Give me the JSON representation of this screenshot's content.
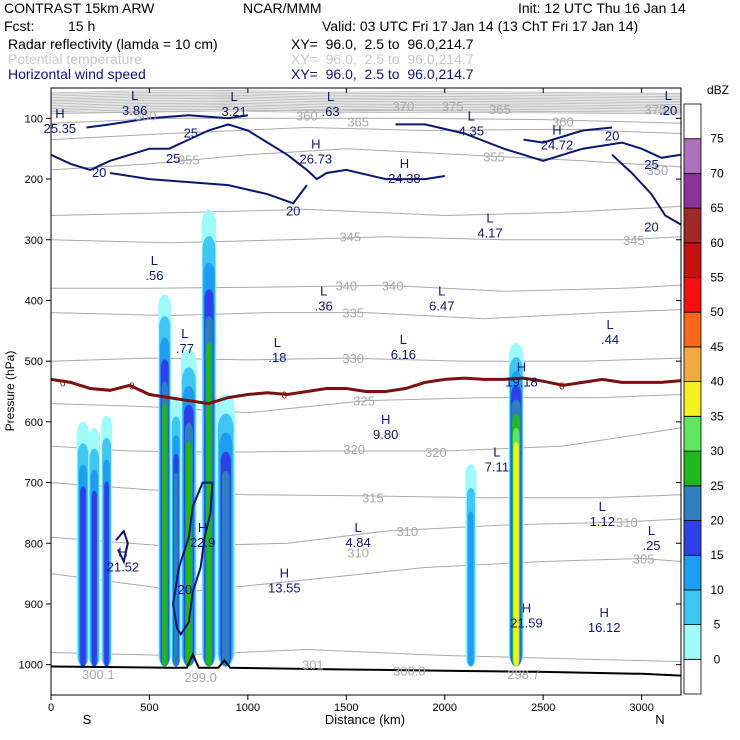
{
  "header": {
    "model": "CONTRAST 15km ARW",
    "org": "NCAR/MMM",
    "init": "Init: 12 UTC Thu 16 Jan 14",
    "fcst_label": "Fcst:",
    "fcst_value": "15 h",
    "valid": "Valid: 03 UTC Fri 17 Jan 14 (13 ChT Fri 17 Jan 14)",
    "field1_name": "Radar reflectivity (lamda = 10 cm)",
    "field1_xy": "XY=  96.0,  2.5 to  96.0,214.7",
    "field2_name": "Potential temperature",
    "field2_xy": "XY=  96.0,  2.5 to  96.0,214.7",
    "field3_name": "Horizontal wind speed",
    "field3_xy": "XY=  96.0,  2.5 to  96.0,214.7"
  },
  "colors": {
    "reflectivity": "#b0b0b0",
    "theta": "#a9a9a9",
    "wind": "#0b1670",
    "freezing": "#7a1010",
    "terrain": "#000000"
  },
  "chart_data": {
    "type": "cross-section",
    "xlabel": "Distance (km)",
    "ylabel": "Pressure (hPa)",
    "xlim": [
      0,
      3200
    ],
    "ylim": [
      1050,
      50
    ],
    "x_ticks": [
      0,
      500,
      1000,
      1500,
      2000,
      2500,
      3000
    ],
    "y_ticks": [
      100,
      200,
      300,
      400,
      500,
      600,
      700,
      800,
      900,
      1000
    ],
    "x_end_labels": {
      "left": "S",
      "right": "N"
    },
    "colorbar": {
      "unit": "dBZ",
      "levels": [
        0,
        5,
        10,
        15,
        20,
        25,
        30,
        35,
        40,
        45,
        50,
        55,
        60,
        65,
        70,
        75
      ],
      "colors": [
        "#ffffff",
        "#9ffafa",
        "#3fc6f4",
        "#1e9ef0",
        "#3040e8",
        "#2e7fc0",
        "#20b820",
        "#5ee65e",
        "#f4f020",
        "#f4a840",
        "#f86818",
        "#f81010",
        "#c81010",
        "#a02828",
        "#8c329a",
        "#b070c0",
        "#ffffff"
      ]
    },
    "reflectivity_cells": [
      {
        "x0": 130,
        "x1": 195,
        "p_top": 600,
        "dbz_max": 20
      },
      {
        "x0": 190,
        "x1": 250,
        "p_top": 610,
        "dbz_max": 20
      },
      {
        "x0": 255,
        "x1": 310,
        "p_top": 590,
        "dbz_max": 20
      },
      {
        "x0": 545,
        "x1": 610,
        "p_top": 390,
        "dbz_max": 30
      },
      {
        "x0": 610,
        "x1": 660,
        "p_top": 560,
        "dbz_max": 25
      },
      {
        "x0": 660,
        "x1": 740,
        "p_top": 480,
        "dbz_max": 30
      },
      {
        "x0": 765,
        "x1": 840,
        "p_top": 250,
        "dbz_max": 30
      },
      {
        "x0": 840,
        "x1": 935,
        "p_top": 555,
        "dbz_max": 25
      },
      {
        "x0": 2105,
        "x1": 2160,
        "p_top": 670,
        "dbz_max": 15
      },
      {
        "x0": 2325,
        "x1": 2400,
        "p_top": 470,
        "dbz_max": 40
      }
    ],
    "theta_labels": [
      {
        "x": 480,
        "p": 95,
        "label": "360"
      },
      {
        "x": 1300,
        "p": 95,
        "label": "360"
      },
      {
        "x": 1790,
        "p": 80,
        "label": "370"
      },
      {
        "x": 2040,
        "p": 80,
        "label": "375"
      },
      {
        "x": 2280,
        "p": 85,
        "label": "365"
      },
      {
        "x": 2600,
        "p": 105,
        "label": "360"
      },
      {
        "x": 3070,
        "p": 85,
        "label": "375"
      },
      {
        "x": 1560,
        "p": 105,
        "label": "365"
      },
      {
        "x": 700,
        "p": 168,
        "label": "355"
      },
      {
        "x": 2250,
        "p": 163,
        "label": "355"
      },
      {
        "x": 3080,
        "p": 185,
        "label": "350"
      },
      {
        "x": 2960,
        "p": 300,
        "label": "345"
      },
      {
        "x": 1520,
        "p": 295,
        "label": "345"
      },
      {
        "x": 1500,
        "p": 375,
        "label": "340"
      },
      {
        "x": 1735,
        "p": 375,
        "label": "340"
      },
      {
        "x": 1535,
        "p": 420,
        "label": "335"
      },
      {
        "x": 1535,
        "p": 495,
        "label": "330"
      },
      {
        "x": 1590,
        "p": 565,
        "label": "325"
      },
      {
        "x": 1540,
        "p": 645,
        "label": "320"
      },
      {
        "x": 1955,
        "p": 650,
        "label": "320"
      },
      {
        "x": 1635,
        "p": 725,
        "label": "315"
      },
      {
        "x": 1810,
        "p": 780,
        "label": "310"
      },
      {
        "x": 2925,
        "p": 765,
        "label": "310"
      },
      {
        "x": 3010,
        "p": 825,
        "label": "305"
      },
      {
        "x": 1560,
        "p": 815,
        "label": "310"
      },
      {
        "x": 240,
        "p": 1015,
        "label": "300.1"
      },
      {
        "x": 760,
        "p": 1020,
        "label": "299.0"
      },
      {
        "x": 1330,
        "p": 1000,
        "label": "301"
      },
      {
        "x": 1820,
        "p": 1010,
        "label": "300.0"
      },
      {
        "x": 2400,
        "p": 1015,
        "label": "298.7"
      }
    ],
    "wind_contour_labels": [
      {
        "x": 710,
        "p": 123,
        "label": "25"
      },
      {
        "x": 620,
        "p": 165,
        "label": "25"
      },
      {
        "x": 245,
        "p": 188,
        "label": "20"
      },
      {
        "x": 1230,
        "p": 252,
        "label": "20"
      },
      {
        "x": 2850,
        "p": 128,
        "label": "20"
      },
      {
        "x": 3050,
        "p": 175,
        "label": "25"
      },
      {
        "x": 3050,
        "p": 278,
        "label": "20"
      },
      {
        "x": 680,
        "p": 875,
        "label": "20"
      }
    ],
    "extrema": [
      {
        "type": "H",
        "value": "25.35",
        "x": 45,
        "p": 108
      },
      {
        "type": "L",
        "value": "3.86",
        "x": 425,
        "p": 78
      },
      {
        "type": "L",
        "value": "3.21",
        "x": 930,
        "p": 80
      },
      {
        "type": "L",
        "value": ".63",
        "x": 1420,
        "p": 80
      },
      {
        "type": "L",
        "value": "4.35",
        "x": 2135,
        "p": 112
      },
      {
        "type": "L",
        "value": ".20",
        "x": 3135,
        "p": 78
      },
      {
        "type": "H",
        "value": "26.73",
        "x": 1345,
        "p": 158
      },
      {
        "type": "H",
        "value": "24.72",
        "x": 2570,
        "p": 135
      },
      {
        "type": "H",
        "value": "24.38",
        "x": 1795,
        "p": 190
      },
      {
        "type": "L",
        "value": "4.17",
        "x": 2230,
        "p": 280
      },
      {
        "type": "L",
        "value": ".56",
        "x": 525,
        "p": 350
      },
      {
        "type": "L",
        "value": ".36",
        "x": 1385,
        "p": 400
      },
      {
        "type": "L",
        "value": "6.47",
        "x": 1985,
        "p": 400
      },
      {
        "type": "L",
        "value": ".77",
        "x": 680,
        "p": 470
      },
      {
        "type": "L",
        "value": ".18",
        "x": 1150,
        "p": 485
      },
      {
        "type": "L",
        "value": "6.16",
        "x": 1790,
        "p": 480
      },
      {
        "type": "L",
        "value": ".44",
        "x": 2840,
        "p": 455
      },
      {
        "type": "H",
        "value": "19.18",
        "x": 2390,
        "p": 525
      },
      {
        "type": "H",
        "value": "9.80",
        "x": 1700,
        "p": 612
      },
      {
        "type": "L",
        "value": "7.11",
        "x": 2265,
        "p": 665
      },
      {
        "type": "L",
        "value": "1.12",
        "x": 2800,
        "p": 755
      },
      {
        "type": "L",
        "value": "4.84",
        "x": 1560,
        "p": 790
      },
      {
        "type": "H",
        "value": "22.9",
        "x": 770,
        "p": 790
      },
      {
        "type": "L",
        "value": ".25",
        "x": 3050,
        "p": 795
      },
      {
        "type": "H",
        "value": "21.52",
        "x": 365,
        "p": 830
      },
      {
        "type": "H",
        "value": "13.55",
        "x": 1185,
        "p": 865
      },
      {
        "type": "H",
        "value": "21.59",
        "x": 2415,
        "p": 922
      },
      {
        "type": "H",
        "value": "16.12",
        "x": 2810,
        "p": 930
      }
    ],
    "freezing_level": {
      "label": "0",
      "label_x": [
        60,
        410,
        1185,
        2595
      ],
      "points": [
        [
          0,
          530
        ],
        [
          100,
          535
        ],
        [
          200,
          545
        ],
        [
          300,
          548
        ],
        [
          400,
          540
        ],
        [
          500,
          555
        ],
        [
          600,
          560
        ],
        [
          700,
          565
        ],
        [
          800,
          570
        ],
        [
          900,
          560
        ],
        [
          1000,
          555
        ],
        [
          1100,
          552
        ],
        [
          1200,
          555
        ],
        [
          1300,
          550
        ],
        [
          1400,
          545
        ],
        [
          1500,
          545
        ],
        [
          1600,
          550
        ],
        [
          1700,
          550
        ],
        [
          1800,
          545
        ],
        [
          1900,
          535
        ],
        [
          2000,
          530
        ],
        [
          2100,
          528
        ],
        [
          2200,
          530
        ],
        [
          2300,
          530
        ],
        [
          2400,
          528
        ],
        [
          2500,
          533
        ],
        [
          2600,
          540
        ],
        [
          2700,
          535
        ],
        [
          2800,
          530
        ],
        [
          2900,
          535
        ],
        [
          3000,
          535
        ],
        [
          3100,
          535
        ],
        [
          3200,
          532
        ]
      ]
    },
    "terrain": [
      [
        0,
        1003
      ],
      [
        600,
        1005
      ],
      [
        690,
        1005
      ],
      [
        720,
        983
      ],
      [
        750,
        1005
      ],
      [
        850,
        1005
      ],
      [
        880,
        993
      ],
      [
        910,
        1005
      ],
      [
        1500,
        1008
      ],
      [
        2000,
        1010
      ],
      [
        2500,
        1012
      ],
      [
        3000,
        1015
      ],
      [
        3200,
        1018
      ]
    ]
  }
}
